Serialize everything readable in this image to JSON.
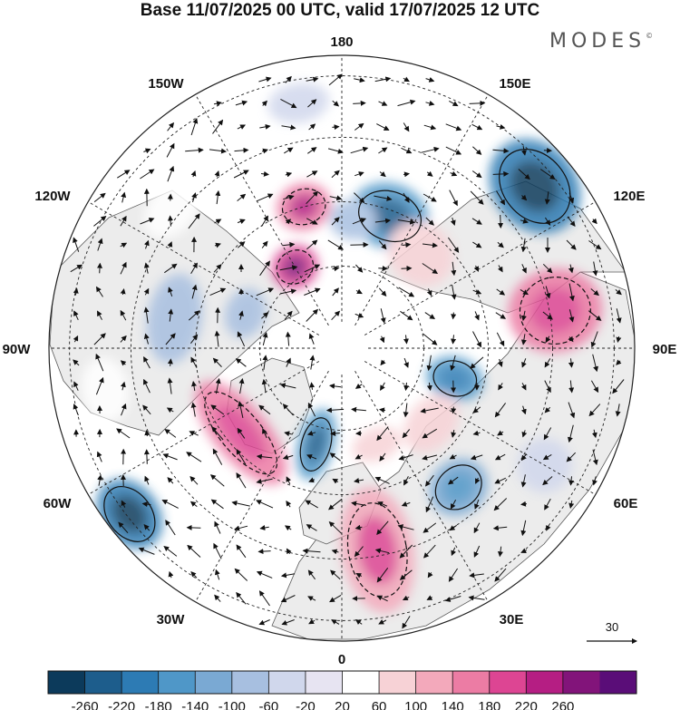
{
  "title": "Base 11/07/2025 00 UTC, valid 17/07/2025 12 UTC",
  "brand": {
    "name": "MODES",
    "mark": "©"
  },
  "map": {
    "projection": "north-polar-stereographic",
    "longitude_labels": {
      "lon_0": "0",
      "lon_30e": "30E",
      "lon_60e": "60E",
      "lon_90e": "90E",
      "lon_120e": "120E",
      "lon_150e": "150E",
      "lon_180": "180",
      "lon_150w": "150W",
      "lon_120w": "120W",
      "lon_90w": "90W",
      "lon_60w": "60W",
      "lon_30w": "30W"
    },
    "colors": {
      "land_fill": "#eeeeee",
      "coast": "#555555",
      "grid": "#222222",
      "rim": "#222222"
    }
  },
  "vector_reference": {
    "value": "30"
  },
  "colorbar": {
    "levels": [
      "-260",
      "-220",
      "-180",
      "-140",
      "-100",
      "-60",
      "-20",
      "20",
      "60",
      "100",
      "140",
      "180",
      "220",
      "260"
    ],
    "colors": [
      "#0c3a5b",
      "#1d5d8c",
      "#2d7bb4",
      "#4f97c8",
      "#7aa9d3",
      "#a7bfe0",
      "#d0d7ec",
      "#e7e4f2",
      "#ffffff",
      "#f7d2d6",
      "#f3a9bb",
      "#ec7ca4",
      "#dd4593",
      "#b51e83",
      "#82147a",
      "#5a0d78"
    ]
  },
  "anomalies": [
    {
      "lon": 160,
      "rlat": 0.48,
      "rx": 44,
      "ry": 36,
      "v": -170
    },
    {
      "lon": 130,
      "rlat": 0.86,
      "rx": 56,
      "ry": 46,
      "v": -210
    },
    {
      "lon": 100,
      "rlat": 0.74,
      "rx": 46,
      "ry": 52,
      "v": 150
    },
    {
      "lon": 140,
      "rlat": 0.42,
      "rx": 38,
      "ry": 34,
      "v": 90
    },
    {
      "lon": 175,
      "rlat": 0.44,
      "rx": 26,
      "ry": 22,
      "v": -90
    },
    {
      "lon": -165,
      "rlat": 0.5,
      "rx": 30,
      "ry": 26,
      "v": 170
    },
    {
      "lon": -150,
      "rlat": 0.32,
      "rx": 26,
      "ry": 24,
      "v": 190
    },
    {
      "lon": -100,
      "rlat": 0.58,
      "rx": 50,
      "ry": 30,
      "v": -80
    },
    {
      "lon": -50,
      "rlat": 0.45,
      "rx": 70,
      "ry": 30,
      "v": 150
    },
    {
      "lon": -15,
      "rlat": 0.34,
      "rx": 20,
      "ry": 40,
      "v": -160
    },
    {
      "lon": 10,
      "rlat": 0.7,
      "rx": 40,
      "ry": 70,
      "v": 130
    },
    {
      "lon": 40,
      "rlat": 0.62,
      "rx": 34,
      "ry": 30,
      "v": -110
    },
    {
      "lon": 75,
      "rlat": 0.4,
      "rx": 24,
      "ry": 32,
      "v": -140
    },
    {
      "lon": 50,
      "rlat": 0.4,
      "rx": 36,
      "ry": 26,
      "v": 90
    },
    {
      "lon": -52,
      "rlat": 0.92,
      "rx": 42,
      "ry": 32,
      "v": -190
    },
    {
      "lon": -110,
      "rlat": 0.35,
      "rx": 28,
      "ry": 22,
      "v": -70
    },
    {
      "lon": -130,
      "rlat": 0.75,
      "rx": 40,
      "ry": 26,
      "v": 50
    },
    {
      "lon": 170,
      "rlat": 0.78,
      "rx": 30,
      "ry": 24,
      "v": 60
    },
    {
      "lon": -170,
      "rlat": 0.85,
      "rx": 34,
      "ry": 22,
      "v": -50
    },
    {
      "lon": 20,
      "rlat": 0.35,
      "rx": 28,
      "ry": 18,
      "v": 70
    },
    {
      "lon": 60,
      "rlat": 0.8,
      "rx": 30,
      "ry": 30,
      "v": -50
    },
    {
      "lon": -80,
      "rlat": 0.82,
      "rx": 36,
      "ry": 26,
      "v": 50
    },
    {
      "lon": 160,
      "rlat": 0.96,
      "rx": 40,
      "ry": 22,
      "v": 60
    }
  ]
}
